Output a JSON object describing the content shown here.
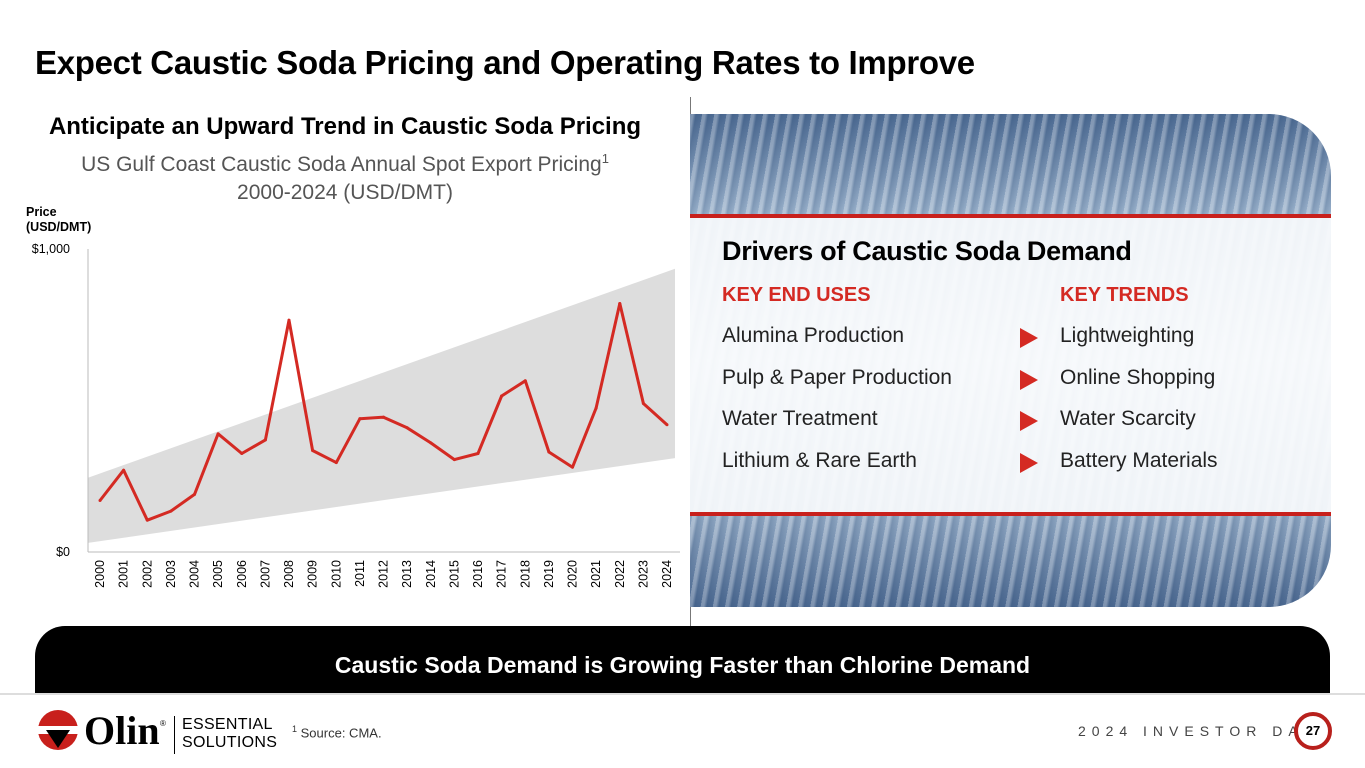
{
  "page": {
    "title": "Expect Caustic Soda Pricing and Operating Rates to Improve",
    "number": "27",
    "event": "2024 INVESTOR DAY"
  },
  "chart_panel": {
    "title": "Anticipate an Upward Trend in Caustic Soda Pricing",
    "subtitle_line1": "US Gulf Coast Caustic Soda Annual Spot Export Pricing",
    "subtitle_sup": "1",
    "subtitle_line2": "2000-2024 (USD/DMT)",
    "price_label_line1": "Price",
    "price_label_line2": "(USD/DMT)"
  },
  "chart_data": {
    "type": "line",
    "title": "US Gulf Coast Caustic Soda Annual Spot Export Pricing 2000-2024 (USD/DMT)",
    "ylabel": "Price (USD/DMT)",
    "xlabel": "",
    "ylim": [
      0,
      1000
    ],
    "ytick_labels": [
      "$0",
      "$1,000"
    ],
    "x": [
      "2000",
      "2001",
      "2002",
      "2003",
      "2004",
      "2005",
      "2006",
      "2007",
      "2008",
      "2009",
      "2010",
      "2011",
      "2012",
      "2013",
      "2014",
      "2015",
      "2016",
      "2017",
      "2018",
      "2019",
      "2020",
      "2021",
      "2022",
      "2023",
      "2024"
    ],
    "series": [
      {
        "name": "Price",
        "color": "#d42a23",
        "values": [
          170,
          270,
          105,
          135,
          190,
          390,
          325,
          370,
          765,
          335,
          295,
          440,
          445,
          410,
          360,
          305,
          325,
          515,
          565,
          330,
          280,
          475,
          820,
          490,
          420
        ]
      }
    ],
    "trend_band": {
      "color": "#dddddd",
      "lower": {
        "x_start": "2000",
        "y_start": 30,
        "x_end": "2024",
        "y_end": 310
      },
      "upper": {
        "x_start": "2000",
        "y_start": 245,
        "x_end": "2024",
        "y_end": 935
      }
    },
    "grid": false
  },
  "drivers": {
    "title": "Drivers of Caustic Soda Demand",
    "left_heading": "KEY END USES",
    "right_heading": "KEY TRENDS",
    "end_uses": [
      "Alumina Production",
      "Pulp & Paper Production",
      "Water Treatment",
      "Lithium & Rare Earth"
    ],
    "trends": [
      "Lightweighting",
      "Online Shopping",
      "Water Scarcity",
      "Battery Materials"
    ],
    "accent_color": "#d42a23"
  },
  "banner": {
    "text": "Caustic Soda Demand is Growing Faster than Chlorine Demand"
  },
  "footer": {
    "logo_text": "Olin",
    "logo_registered": "®",
    "division_line1": "ESSENTIAL",
    "division_line2": "SOLUTIONS",
    "source_sup": "1",
    "source_text": "Source: CMA."
  }
}
